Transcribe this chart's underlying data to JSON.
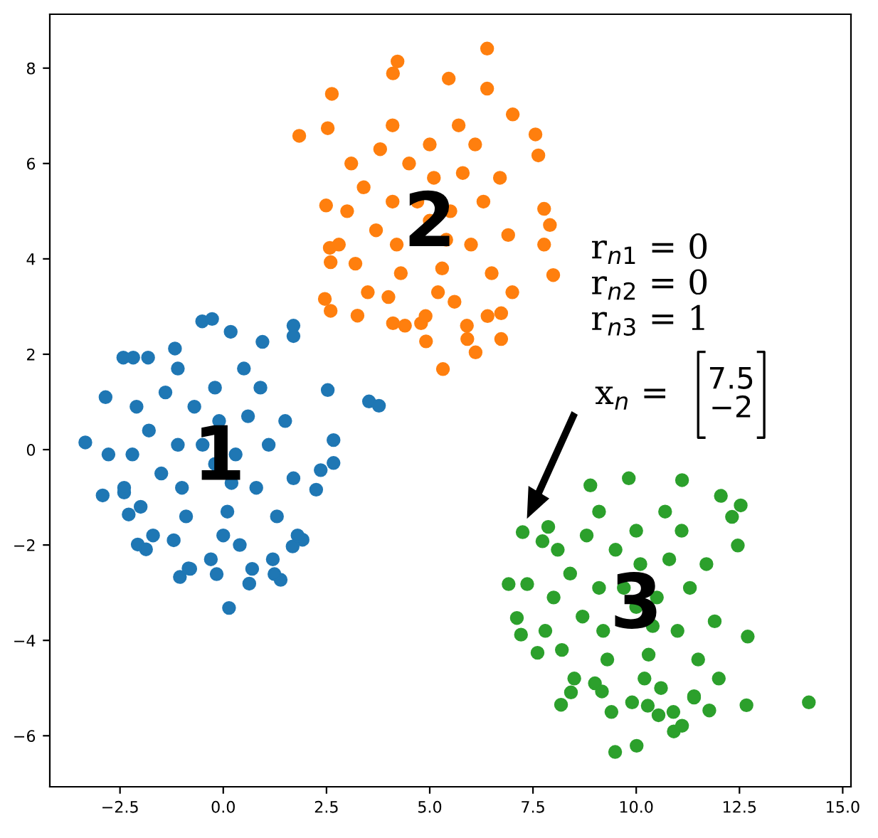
{
  "chart_data": {
    "type": "scatter",
    "xlim": [
      -4.2,
      15.2
    ],
    "ylim": [
      -7.07,
      9.13
    ],
    "xticks": [
      {
        "value": -2.5,
        "label": "−2.5"
      },
      {
        "value": 0,
        "label": "0.0"
      },
      {
        "value": 2.5,
        "label": "2.5"
      },
      {
        "value": 5,
        "label": "5.0"
      },
      {
        "value": 7.5,
        "label": "7.5"
      },
      {
        "value": 10,
        "label": "10.0"
      },
      {
        "value": 12.5,
        "label": "12.5"
      },
      {
        "value": 15,
        "label": "15.0"
      }
    ],
    "yticks": [
      {
        "value": -6,
        "label": "−6"
      },
      {
        "value": -4,
        "label": "−4"
      },
      {
        "value": -2,
        "label": "−2"
      },
      0,
      2,
      4,
      6,
      8
    ],
    "grid": false,
    "marker": "circle",
    "series": [
      {
        "color": "#1f77b4",
        "x": [
          -3.34,
          -2.85,
          -2.92,
          -2.78,
          -2.42,
          -2.18,
          -1.82,
          -0.51,
          -0.27,
          0.18,
          1.7,
          1.7,
          0.95,
          3.53,
          3.77,
          2.67,
          2.67,
          2.36,
          2.25,
          2.53,
          0.14,
          0.63,
          1.39,
          1.24,
          -1.05,
          -0.84,
          -0.16,
          -2.07,
          -1.87,
          -2.29,
          -2.4,
          1.92,
          1.68,
          -1.17,
          -0.2,
          0.3,
          -1.1,
          0.1,
          -0.9,
          0.8,
          -1.5,
          -0.1,
          -0.7,
          0.6,
          1.1,
          -1.8,
          -1.2,
          0.4,
          1.3,
          -0.3,
          -2.0,
          -0.2,
          1.5,
          -1.4,
          0.7,
          -0.8,
          1.7,
          -2.2,
          -0.5,
          0.2,
          -1.0,
          0.0,
          0.9,
          -1.7,
          -2.1,
          1.8,
          0.5,
          -1.1,
          1.2,
          -2.4
        ],
        "values": [
          0.15,
          1.1,
          -0.96,
          -0.1,
          1.93,
          1.93,
          1.93,
          2.69,
          2.74,
          2.47,
          2.6,
          2.38,
          2.26,
          1.01,
          0.92,
          0.2,
          -0.28,
          -0.43,
          -0.84,
          1.25,
          -3.32,
          -2.81,
          -2.73,
          -2.61,
          -2.67,
          -2.49,
          -2.61,
          -1.99,
          -2.09,
          -1.36,
          -0.9,
          -1.89,
          -2.03,
          2.12,
          -0.3,
          -0.1,
          0.1,
          -1.3,
          -1.4,
          -0.8,
          -0.5,
          0.6,
          0.9,
          0.7,
          0.1,
          0.4,
          -1.9,
          -2.0,
          -1.4,
          -2.3,
          -1.2,
          1.3,
          0.6,
          1.2,
          -2.5,
          -2.5,
          -0.6,
          -0.1,
          0.1,
          -0.7,
          -0.8,
          -1.8,
          1.3,
          -1.8,
          0.9,
          -1.8,
          1.7,
          1.7,
          -2.3,
          -0.8
        ]
      },
      {
        "color": "#ff7f0e",
        "x": [
          6.39,
          4.22,
          4.11,
          2.63,
          1.84,
          5.46,
          6.39,
          7.01,
          7.56,
          7.63,
          7.77,
          7.91,
          7.77,
          7.99,
          2.53,
          2.49,
          2.58,
          2.6,
          2.46,
          2.6,
          3.25,
          4.11,
          4.91,
          5.32,
          6.11,
          6.73,
          5.91,
          6.73,
          4.79,
          5.0,
          5.5,
          4.1,
          5.3,
          4.3,
          6.0,
          3.7,
          5.1,
          4.5,
          5.8,
          6.3,
          3.4,
          4.0,
          5.6,
          6.5,
          4.9,
          3.2,
          5.0,
          6.7,
          3.8,
          5.9,
          4.4,
          6.9,
          3.0,
          4.7,
          5.4,
          4.2,
          5.2,
          6.1,
          3.5,
          3.1,
          7.0,
          5.7,
          4.1,
          6.4,
          2.8
        ],
        "values": [
          8.41,
          8.14,
          7.89,
          7.46,
          6.58,
          7.78,
          7.57,
          7.03,
          6.61,
          6.17,
          5.05,
          4.71,
          4.3,
          3.66,
          6.74,
          5.12,
          4.23,
          3.93,
          3.16,
          2.91,
          2.81,
          2.65,
          2.27,
          1.69,
          2.04,
          2.32,
          2.32,
          2.86,
          2.65,
          4.8,
          5.0,
          5.2,
          3.8,
          3.7,
          4.3,
          4.6,
          5.7,
          6.0,
          5.8,
          5.2,
          5.5,
          3.2,
          3.1,
          3.7,
          2.8,
          3.9,
          6.4,
          5.7,
          6.3,
          2.6,
          2.6,
          4.5,
          5.0,
          5.2,
          4.4,
          4.3,
          3.3,
          6.4,
          3.3,
          6.0,
          3.3,
          6.8,
          6.8,
          2.8,
          4.3
        ]
      },
      {
        "color": "#2ca02c",
        "x": [
          14.18,
          12.67,
          12.7,
          12.53,
          12.46,
          7.25,
          7.87,
          7.73,
          6.91,
          7.36,
          7.11,
          7.21,
          7.61,
          8.18,
          8.42,
          9.49,
          10.01,
          10.91,
          11.11,
          10.28,
          10.54,
          11.77,
          9.17,
          8.89,
          9.82,
          11.11,
          12.05,
          12.32,
          11.4,
          10.0,
          10.5,
          9.1,
          10.3,
          9.3,
          11.0,
          8.7,
          10.1,
          9.5,
          10.8,
          11.3,
          8.4,
          9.0,
          10.6,
          11.5,
          9.9,
          8.2,
          10.0,
          11.7,
          8.8,
          10.9,
          9.4,
          11.9,
          8.0,
          9.7,
          10.4,
          9.2,
          10.2,
          11.1,
          8.5,
          8.1,
          12.0,
          10.7,
          9.1,
          11.4,
          7.8
        ],
        "values": [
          -5.3,
          -5.36,
          -3.92,
          -1.17,
          -2.01,
          -1.73,
          -1.62,
          -1.92,
          -2.82,
          -2.82,
          -3.53,
          -3.88,
          -4.26,
          -5.35,
          -5.09,
          -6.34,
          -6.21,
          -5.91,
          -5.79,
          -5.37,
          -5.57,
          -5.47,
          -5.07,
          -0.75,
          -0.6,
          -0.64,
          -0.97,
          -1.41,
          -5.17,
          -3.3,
          -3.1,
          -2.9,
          -4.3,
          -4.4,
          -3.8,
          -3.5,
          -2.4,
          -2.1,
          -2.3,
          -2.9,
          -2.6,
          -4.9,
          -5.0,
          -4.4,
          -5.3,
          -4.2,
          -1.7,
          -2.4,
          -1.8,
          -5.5,
          -5.5,
          -3.6,
          -3.1,
          -2.9,
          -3.7,
          -3.8,
          -4.8,
          -1.7,
          -4.8,
          -2.1,
          -4.8,
          -1.3,
          -1.3,
          -5.2,
          -3.8
        ]
      }
    ],
    "annotations": [
      "1",
      "2",
      "3",
      "r$_{n1}$ = 0",
      "r$_{n2}$ = 0",
      "r$_{n3}$ = 1",
      "x$_{n}$ =",
      "7.5\n−2"
    ]
  }
}
